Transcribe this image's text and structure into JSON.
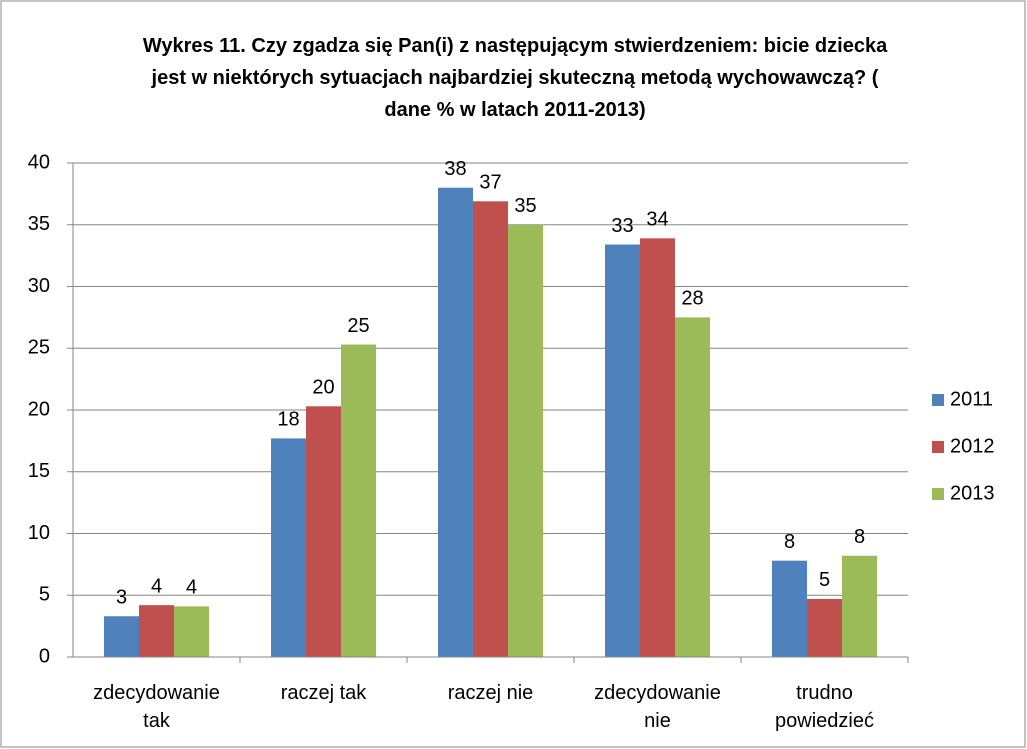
{
  "chart_data": {
    "type": "bar",
    "title": "Wykres 11. Czy zgadza się Pan(i) z następującym stwierdzeniem: bicie dziecka jest w niektórych sytuacjach najbardziej skuteczną metodą wychowawczą? ( dane % w latach 2011-2013)",
    "categories": [
      "zdecydowanie tak",
      "raczej tak",
      "raczej nie",
      "zdecydowanie nie",
      "trudno powiedzieć"
    ],
    "series": [
      {
        "name": "2011",
        "color": "#4f81bd",
        "values": [
          3.3,
          17.7,
          38.0,
          33.4,
          7.8
        ],
        "value_labels": [
          "3",
          "18",
          "38",
          "33",
          "8"
        ]
      },
      {
        "name": "2012",
        "color": "#c0504d",
        "values": [
          4.2,
          20.3,
          36.9,
          33.9,
          4.7
        ],
        "value_labels": [
          "4",
          "20",
          "37",
          "34",
          "5"
        ]
      },
      {
        "name": "2013",
        "color": "#9bbb59",
        "values": [
          4.1,
          25.3,
          35.0,
          27.5,
          8.2
        ],
        "value_labels": [
          "4",
          "25",
          "35",
          "28",
          "8"
        ]
      }
    ],
    "ylim": [
      0,
      40
    ],
    "yticks": [
      0,
      5,
      10,
      15,
      20,
      25,
      30,
      35,
      40
    ],
    "grid": true,
    "legend": "right"
  }
}
